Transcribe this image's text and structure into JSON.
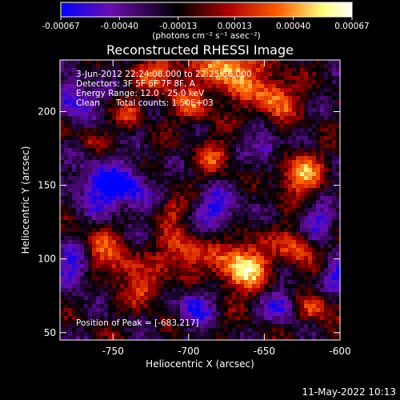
{
  "chart_data": {
    "type": "heatmap",
    "title": "Reconstructed RHESSI Image",
    "xlabel": "Heliocentric X (arcsec)",
    "ylabel": "Heliocentric Y (arcsec)",
    "xlim": [
      -785,
      -600
    ],
    "ylim": [
      45,
      235
    ],
    "x_ticks": [
      "-750",
      "-700",
      "-650",
      "-600"
    ],
    "x_tick_values": [
      -750,
      -700,
      -650,
      -600
    ],
    "y_ticks": [
      "50",
      "100",
      "150",
      "200"
    ],
    "y_tick_values": [
      50,
      100,
      150,
      200
    ],
    "colorbar": {
      "ticks": [
        "-0.00067",
        "-0.00040",
        "-0.00013",
        "0.00013",
        "0.00040",
        "0.00067"
      ],
      "tick_values": [
        -0.00067,
        -0.0004,
        -0.00013,
        0.00013,
        0.0004,
        0.00067
      ],
      "unit_label": "(photons cm⁻² s⁻¹ asec⁻²)",
      "colors": [
        "#0000ff",
        "#6a0dad",
        "#000000",
        "#b00000",
        "#ff6000",
        "#ffff80",
        "#ffffff"
      ]
    },
    "annotations": [
      "3-Jun-2012 22:24:08.000 to 22:25:56.000",
      "Detectors: 3F 5F 6F 7F 8F, A",
      "Energy Range: 12.0 - 25.0 keV",
      "Clean      Total counts: 1.50E+03"
    ],
    "peak_label": "Position of Peak = [-683,217]",
    "peak": {
      "x": -683,
      "y": 217
    },
    "grid": false
  },
  "footer": {
    "timestamp": "11-May-2022 10:13"
  }
}
